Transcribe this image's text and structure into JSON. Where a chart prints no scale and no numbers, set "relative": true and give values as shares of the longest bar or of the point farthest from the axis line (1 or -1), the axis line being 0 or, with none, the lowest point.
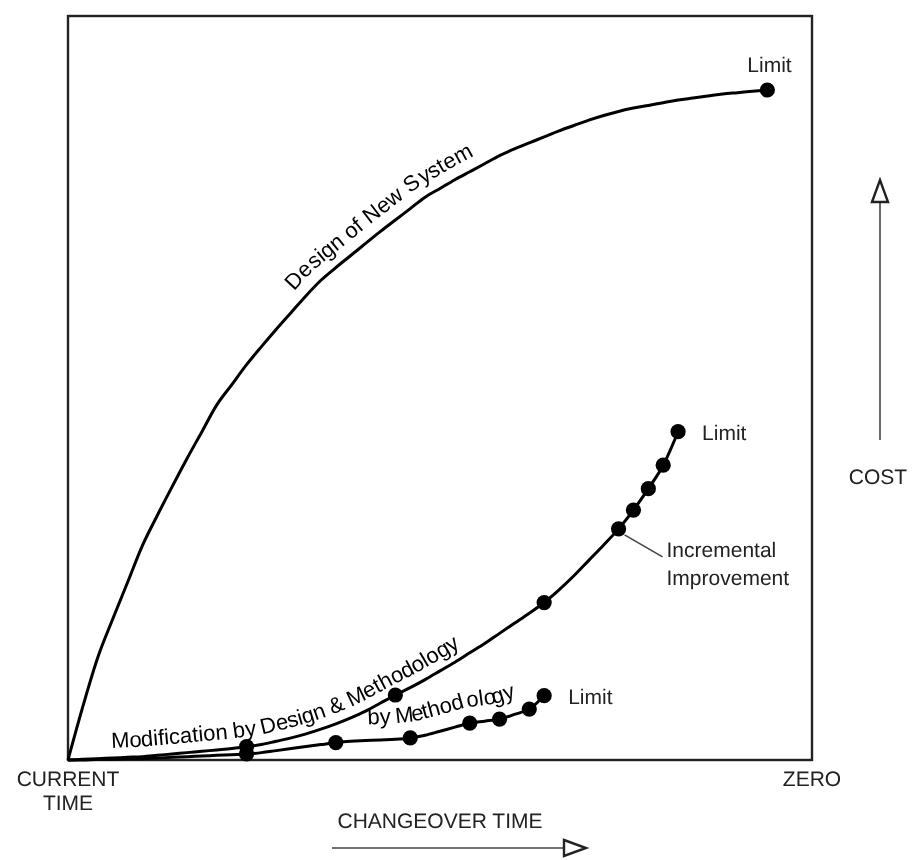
{
  "chart_data": {
    "type": "line",
    "relative": true,
    "xlabel": "CHANGEOVER TIME",
    "ylabel": "COST",
    "categories": [
      "CURRENT\nTIME",
      null,
      null,
      null,
      null,
      null,
      null,
      null,
      null,
      null,
      null,
      null,
      null,
      null,
      null,
      null,
      null,
      null,
      null,
      null,
      null,
      null,
      null,
      null,
      null,
      null,
      null,
      null,
      null,
      null,
      null,
      null,
      null,
      null,
      null,
      null,
      null,
      null,
      null,
      null,
      null,
      null,
      null,
      null,
      null,
      null,
      null,
      null,
      null,
      null,
      "ZERO"
    ],
    "series": [
      {
        "name": "Design of New System",
        "color": "#000000",
        "marker": "none",
        "values": [
          0,
          0.08,
          0.153,
          0.21,
          0.265,
          0.32,
          0.365,
          0.408,
          0.45,
          0.49,
          0.53,
          0.56,
          0.59,
          0.617,
          0.643,
          0.668,
          0.693,
          0.716,
          0.735,
          0.753,
          0.771,
          0.789,
          0.806,
          0.823,
          0.84,
          0.853,
          0.866,
          0.878,
          0.89,
          0.902,
          0.912,
          0.921,
          0.93,
          0.939,
          0.947,
          0.955,
          0.962,
          0.968,
          0.973,
          0.977,
          0.981,
          0.985,
          0.988,
          0.991,
          0.994,
          0.996,
          0.998,
          1,
          null,
          null,
          null
        ]
      },
      {
        "type": "scatter",
        "color": "#000000",
        "marker": "circle",
        "values": [
          null,
          null,
          null,
          null,
          null,
          null,
          null,
          null,
          null,
          null,
          null,
          null,
          null,
          null,
          null,
          null,
          null,
          null,
          null,
          null,
          null,
          null,
          null,
          null,
          null,
          null,
          null,
          null,
          null,
          null,
          null,
          null,
          null,
          null,
          null,
          null,
          null,
          null,
          null,
          null,
          null,
          null,
          null,
          null,
          null,
          null,
          null,
          1,
          null,
          null,
          null
        ]
      },
      {
        "name": "Modification by Design & Methodology",
        "color": "#000000",
        "marker": "none",
        "values": [
          0,
          0.001,
          0.002,
          0.003,
          0.004,
          0.005,
          0.007,
          0.009,
          0.011,
          0.013,
          0.015,
          0.017,
          0.02,
          0.023,
          0.028,
          0.033,
          0.039,
          0.046,
          0.054,
          0.063,
          0.073,
          0.085,
          0.097,
          0.108,
          0.12,
          0.133,
          0.146,
          0.16,
          0.174,
          0.189,
          0.204,
          0.219,
          0.235,
          0.254,
          0.275,
          0.298,
          0.321,
          0.345,
          0.373,
          0.405,
          0.44,
          0.49,
          null,
          null,
          null,
          null,
          null,
          null,
          null,
          null,
          null
        ]
      },
      {
        "type": "scatter",
        "color": "#000000",
        "marker": "circle",
        "values": [
          null,
          null,
          null,
          null,
          null,
          null,
          null,
          null,
          null,
          null,
          null,
          null,
          0.02,
          null,
          null,
          null,
          null,
          null,
          null,
          null,
          null,
          null,
          0.097,
          null,
          null,
          null,
          null,
          null,
          null,
          null,
          null,
          null,
          0.235,
          null,
          null,
          null,
          null,
          0.345,
          0.373,
          0.405,
          0.44,
          0.49,
          null,
          null,
          null,
          null,
          null,
          null,
          null,
          null,
          null
        ]
      },
      {
        "name": "by Methodology",
        "color": "#000000",
        "marker": "none",
        "values": [
          0,
          0,
          0.001,
          0.001,
          0.002,
          0.002,
          0.003,
          0.004,
          0.005,
          0.006,
          0.007,
          0.008,
          0.009,
          0.011,
          0.014,
          0.017,
          0.02,
          0.023,
          0.026,
          0.028,
          0.029,
          0.03,
          0.031,
          0.033,
          0.037,
          0.043,
          0.049,
          0.055,
          0.058,
          0.061,
          0.068,
          0.076,
          0.096,
          null,
          null,
          null,
          null,
          null,
          null,
          null,
          null,
          null,
          null,
          null,
          null,
          null,
          null,
          null,
          null,
          null,
          null
        ]
      },
      {
        "type": "scatter",
        "color": "#000000",
        "marker": "circle",
        "values": [
          null,
          null,
          null,
          null,
          null,
          null,
          null,
          null,
          null,
          null,
          null,
          null,
          0.009,
          null,
          null,
          null,
          null,
          null,
          0.026,
          null,
          null,
          null,
          null,
          0.033,
          null,
          null,
          null,
          0.055,
          null,
          0.061,
          null,
          0.076,
          0.096,
          null,
          null,
          null,
          null,
          null,
          null,
          null,
          null,
          null,
          null,
          null,
          null,
          null,
          null,
          null,
          null,
          null,
          null
        ]
      }
    ],
    "annotations": [
      "Limit",
      "Limit",
      "Limit",
      "Incremental Improvement"
    ]
  }
}
